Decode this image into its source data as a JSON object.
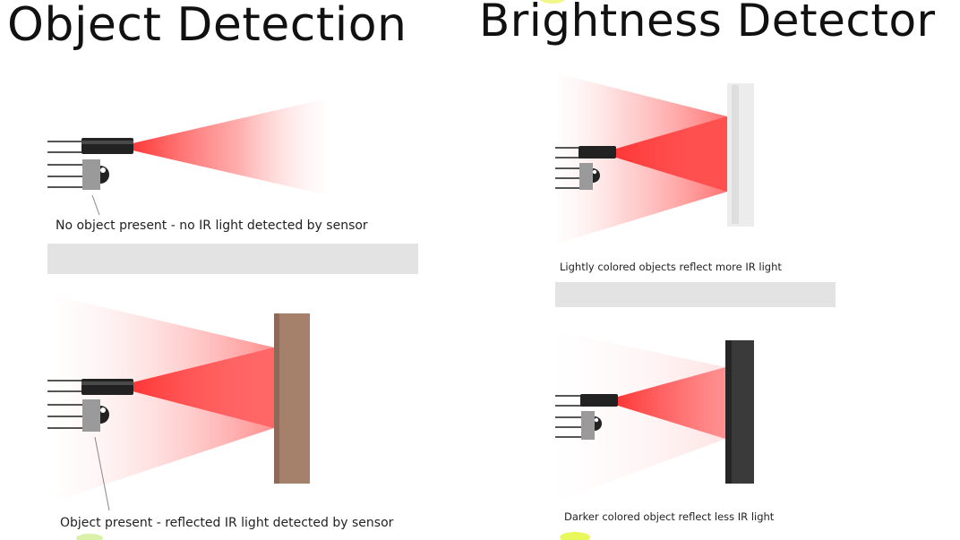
{
  "object_detection": {
    "title": "Object Detection",
    "scene_no_object": {
      "caption": "No object present - no IR light detected by sensor"
    },
    "scene_object": {
      "caption": "Object present - reflected IR light detected by sensor"
    }
  },
  "brightness_detector": {
    "title": "Brightness Detector",
    "scene_light": {
      "caption": "Lightly colored objects reflect more IR light"
    },
    "scene_dark": {
      "caption": "Darker colored object reflect less IR light"
    }
  },
  "colors": {
    "ir_beam": "#ff3b3b",
    "emitter_body": "#222222",
    "sensor_body": "#9a9a9a",
    "pins": "#555555",
    "object_brown": "#a5806b",
    "object_light": "#ececec",
    "object_dark": "#3a3a3a",
    "divider": "#e3e3e3"
  }
}
